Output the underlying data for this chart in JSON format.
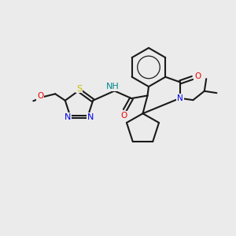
{
  "background_color": "#ebebeb",
  "bond_color": "#1a1a1a",
  "atom_colors": {
    "N": "#0000ee",
    "O": "#ee0000",
    "S": "#ccbb00",
    "H": "#008888",
    "C": "#1a1a1a"
  },
  "figsize": [
    3.0,
    3.0
  ],
  "dpi": 100
}
